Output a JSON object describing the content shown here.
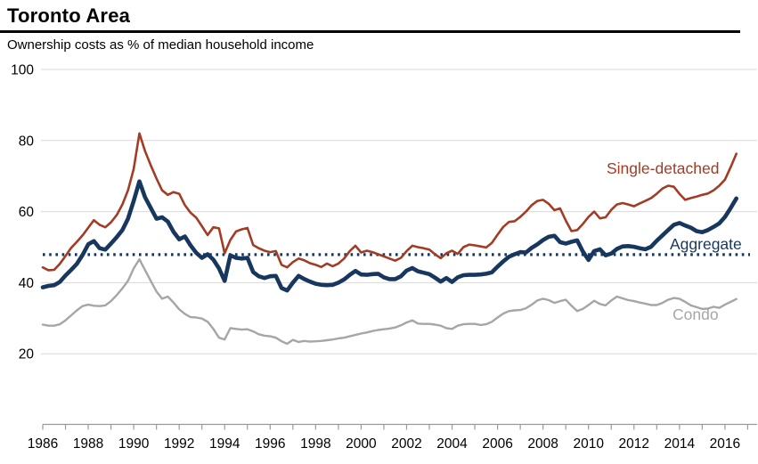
{
  "header": {
    "title": "Toronto Area",
    "subtitle": "Ownership costs as % of median household income"
  },
  "colors": {
    "single_detached": "#A23C25",
    "aggregate": "#17375E",
    "condo": "#A6A6A6",
    "average_line": "#17375E",
    "gridline": "#D9D9D9",
    "axis": "#9A9A9A",
    "text": "#000000"
  },
  "chart_data": {
    "type": "line",
    "title": "Toronto Area",
    "subtitle": "Ownership costs as % of median household income",
    "x_start": 1986,
    "x_step": 0.25,
    "x_end": 2016.5,
    "x_axis": {
      "tick_from": 1986,
      "tick_to": 2017,
      "label_years": [
        1986,
        1988,
        1990,
        1992,
        1994,
        1996,
        1998,
        2000,
        2002,
        2004,
        2006,
        2008,
        2010,
        2012,
        2014,
        2016
      ]
    },
    "y_axis": {
      "ticks": [
        20,
        40,
        60,
        80,
        100
      ],
      "range": [
        0,
        100
      ],
      "grid": true
    },
    "average_line": {
      "value": 47.9,
      "style": "dotted"
    },
    "legend": {
      "single_detached": "Single-detached",
      "aggregate": "Aggregate",
      "condo": "Condo"
    },
    "series": [
      {
        "name": "Single-detached",
        "color_key": "single_detached",
        "width": 2.6,
        "values": [
          44.3,
          43.5,
          43.6,
          45.3,
          47.5,
          49.8,
          51.5,
          53.3,
          55.5,
          57.6,
          56.3,
          55.6,
          57.0,
          59.0,
          62.0,
          66.0,
          72.0,
          82.0,
          77.0,
          73.0,
          69.3,
          66.0,
          64.7,
          65.5,
          65.0,
          61.8,
          59.7,
          58.3,
          55.9,
          53.4,
          55.6,
          55.3,
          48.3,
          52.0,
          54.4,
          55.0,
          55.4,
          50.6,
          49.7,
          49.0,
          48.6,
          48.9,
          45.0,
          44.3,
          45.8,
          46.8,
          46.3,
          45.5,
          45.0,
          44.4,
          45.4,
          44.6,
          45.4,
          46.8,
          48.9,
          50.4,
          48.5,
          49.0,
          48.6,
          48.0,
          47.4,
          46.8,
          46.2,
          47.0,
          48.9,
          50.4,
          50.0,
          49.7,
          49.3,
          48.0,
          46.9,
          48.3,
          49.0,
          48.1,
          50.0,
          50.7,
          50.5,
          50.2,
          49.9,
          51.2,
          53.5,
          55.7,
          57.1,
          57.3,
          58.5,
          60.0,
          61.8,
          63.0,
          63.3,
          62.2,
          60.4,
          60.9,
          57.5,
          54.5,
          54.8,
          56.5,
          58.5,
          60.0,
          58.1,
          58.4,
          60.5,
          62.0,
          62.4,
          62.0,
          61.5,
          62.3,
          63.0,
          63.8,
          65.0,
          66.5,
          67.3,
          67.0,
          65.0,
          63.3,
          63.8,
          64.2,
          64.7,
          65.1,
          66.0,
          67.3,
          69.0,
          72.5,
          76.3
        ]
      },
      {
        "name": "Aggregate",
        "color_key": "aggregate",
        "width": 4.6,
        "values": [
          38.7,
          39.1,
          39.3,
          40.2,
          42.0,
          43.6,
          45.3,
          47.8,
          50.8,
          51.7,
          49.7,
          49.3,
          51.0,
          52.8,
          54.8,
          58.0,
          63.0,
          68.5,
          64.0,
          61.0,
          58.0,
          58.4,
          57.2,
          54.3,
          52.2,
          53.0,
          50.5,
          48.4,
          47.0,
          48.0,
          46.5,
          44.0,
          40.5,
          47.7,
          47.0,
          46.8,
          47.0,
          43.0,
          41.8,
          41.3,
          41.8,
          41.9,
          38.5,
          37.8,
          40.0,
          41.9,
          41.0,
          40.3,
          39.7,
          39.4,
          39.3,
          39.4,
          40.0,
          40.9,
          42.2,
          43.3,
          42.3,
          42.2,
          42.4,
          42.5,
          41.5,
          41.0,
          41.0,
          41.8,
          43.4,
          44.1,
          43.2,
          42.8,
          42.4,
          41.4,
          40.3,
          41.3,
          40.2,
          41.5,
          42.1,
          42.2,
          42.2,
          42.3,
          42.5,
          42.9,
          44.5,
          46.0,
          47.3,
          48.0,
          48.6,
          48.5,
          49.8,
          50.8,
          52.0,
          52.9,
          53.2,
          51.4,
          51.0,
          51.5,
          51.9,
          48.8,
          46.4,
          48.9,
          49.4,
          47.7,
          48.2,
          49.5,
          50.2,
          50.3,
          50.1,
          49.7,
          49.4,
          50.1,
          51.8,
          53.3,
          54.8,
          56.3,
          56.8,
          56.1,
          55.5,
          54.5,
          54.2,
          54.8,
          55.7,
          56.7,
          58.5,
          61.0,
          63.7
        ]
      },
      {
        "name": "Condo",
        "color_key": "condo",
        "width": 2.4,
        "values": [
          28.2,
          27.9,
          27.9,
          28.3,
          29.4,
          30.8,
          32.2,
          33.4,
          33.8,
          33.5,
          33.4,
          33.6,
          34.8,
          36.5,
          38.4,
          40.5,
          44.0,
          46.6,
          43.5,
          40.5,
          37.5,
          35.5,
          36.1,
          34.4,
          32.5,
          31.2,
          30.3,
          30.2,
          29.9,
          29.0,
          27.0,
          24.5,
          24.0,
          27.2,
          27.0,
          26.8,
          26.9,
          26.3,
          25.5,
          25.1,
          24.9,
          24.5,
          23.5,
          22.8,
          23.9,
          23.3,
          23.6,
          23.4,
          23.5,
          23.6,
          23.8,
          24.0,
          24.3,
          24.5,
          24.9,
          25.3,
          25.7,
          26.0,
          26.4,
          26.7,
          26.9,
          27.1,
          27.4,
          28.0,
          28.8,
          29.4,
          28.5,
          28.4,
          28.4,
          28.2,
          27.9,
          27.2,
          27.0,
          27.9,
          28.3,
          28.4,
          28.4,
          28.1,
          28.3,
          29.0,
          30.2,
          31.3,
          32.0,
          32.2,
          32.3,
          32.8,
          33.8,
          35.0,
          35.5,
          35.1,
          34.3,
          34.8,
          35.2,
          33.5,
          32.0,
          32.6,
          33.7,
          34.9,
          34.0,
          33.6,
          35.0,
          36.1,
          35.6,
          35.1,
          34.8,
          34.4,
          34.1,
          33.7,
          33.7,
          34.3,
          35.2,
          35.7,
          35.5,
          34.6,
          33.6,
          33.1,
          32.6,
          32.7,
          33.2,
          32.9,
          33.8,
          34.6,
          35.4
        ]
      }
    ]
  }
}
